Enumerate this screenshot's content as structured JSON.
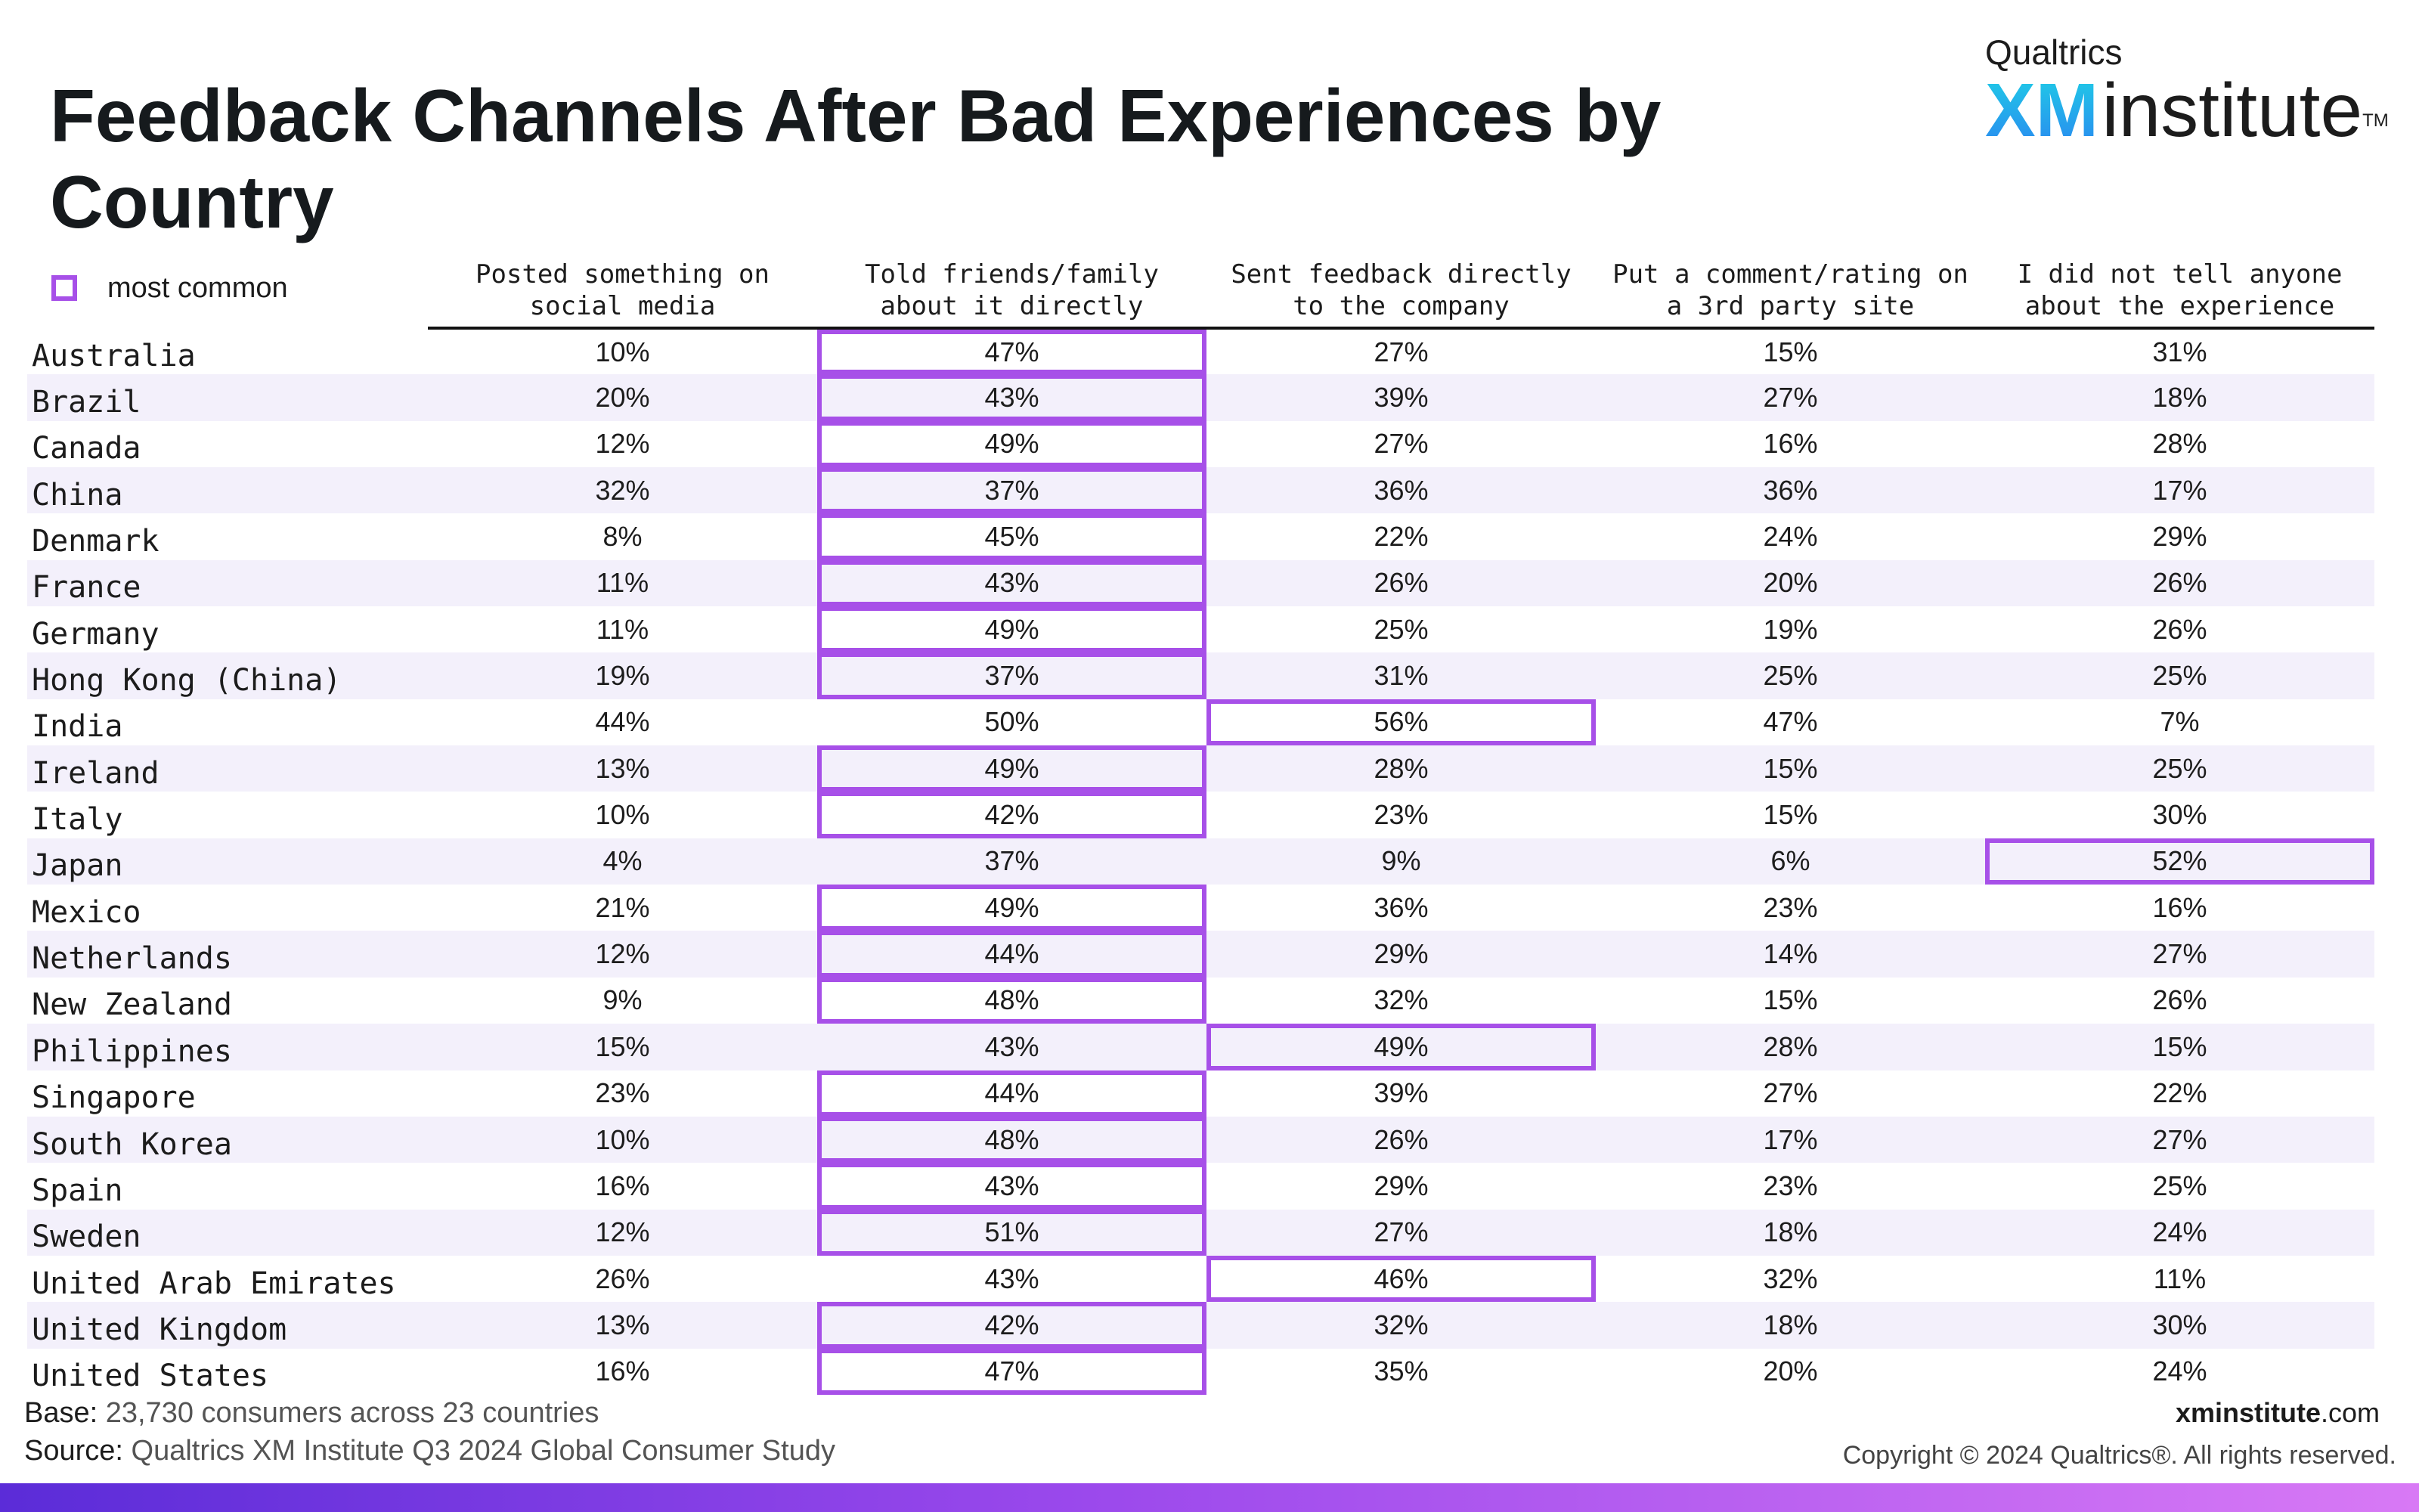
{
  "title": "Feedback Channels After Bad Experiences by Country",
  "logo": {
    "top": "Qualtrics",
    "xm": "XM",
    "institute": "institute",
    "tm": "TM"
  },
  "legend": {
    "label": "most common"
  },
  "colors": {
    "highlight": "#a750e8",
    "stripe": "#f3f0fb"
  },
  "chart_data": {
    "type": "table",
    "title": "Feedback Channels After Bad Experiences by Country",
    "columns": [
      "Posted something on\nsocial media",
      "Told friends/family\nabout it directly",
      "Sent feedback directly\nto the company",
      "Put a comment/rating on\na 3rd party site",
      "I did not tell anyone\nabout the experience"
    ],
    "rows": [
      {
        "country": "Australia",
        "values": [
          "10%",
          "47%",
          "27%",
          "15%",
          "31%"
        ],
        "most_common": 1
      },
      {
        "country": "Brazil",
        "values": [
          "20%",
          "43%",
          "39%",
          "27%",
          "18%"
        ],
        "most_common": 1
      },
      {
        "country": "Canada",
        "values": [
          "12%",
          "49%",
          "27%",
          "16%",
          "28%"
        ],
        "most_common": 1
      },
      {
        "country": "China",
        "values": [
          "32%",
          "37%",
          "36%",
          "36%",
          "17%"
        ],
        "most_common": 1
      },
      {
        "country": "Denmark",
        "values": [
          "8%",
          "45%",
          "22%",
          "24%",
          "29%"
        ],
        "most_common": 1
      },
      {
        "country": "France",
        "values": [
          "11%",
          "43%",
          "26%",
          "20%",
          "26%"
        ],
        "most_common": 1
      },
      {
        "country": "Germany",
        "values": [
          "11%",
          "49%",
          "25%",
          "19%",
          "26%"
        ],
        "most_common": 1
      },
      {
        "country": "Hong Kong (China)",
        "values": [
          "19%",
          "37%",
          "31%",
          "25%",
          "25%"
        ],
        "most_common": 1
      },
      {
        "country": "India",
        "values": [
          "44%",
          "50%",
          "56%",
          "47%",
          "7%"
        ],
        "most_common": 2
      },
      {
        "country": "Ireland",
        "values": [
          "13%",
          "49%",
          "28%",
          "15%",
          "25%"
        ],
        "most_common": 1
      },
      {
        "country": "Italy",
        "values": [
          "10%",
          "42%",
          "23%",
          "15%",
          "30%"
        ],
        "most_common": 1
      },
      {
        "country": "Japan",
        "values": [
          "4%",
          "37%",
          "9%",
          "6%",
          "52%"
        ],
        "most_common": 4
      },
      {
        "country": "Mexico",
        "values": [
          "21%",
          "49%",
          "36%",
          "23%",
          "16%"
        ],
        "most_common": 1
      },
      {
        "country": "Netherlands",
        "values": [
          "12%",
          "44%",
          "29%",
          "14%",
          "27%"
        ],
        "most_common": 1
      },
      {
        "country": "New Zealand",
        "values": [
          "9%",
          "48%",
          "32%",
          "15%",
          "26%"
        ],
        "most_common": 1
      },
      {
        "country": "Philippines",
        "values": [
          "15%",
          "43%",
          "49%",
          "28%",
          "15%"
        ],
        "most_common": 2
      },
      {
        "country": "Singapore",
        "values": [
          "23%",
          "44%",
          "39%",
          "27%",
          "22%"
        ],
        "most_common": 1
      },
      {
        "country": "South Korea",
        "values": [
          "10%",
          "48%",
          "26%",
          "17%",
          "27%"
        ],
        "most_common": 1
      },
      {
        "country": "Spain",
        "values": [
          "16%",
          "43%",
          "29%",
          "23%",
          "25%"
        ],
        "most_common": 1
      },
      {
        "country": "Sweden",
        "values": [
          "12%",
          "51%",
          "27%",
          "18%",
          "24%"
        ],
        "most_common": 1
      },
      {
        "country": "United Arab Emirates",
        "values": [
          "26%",
          "43%",
          "46%",
          "32%",
          "11%"
        ],
        "most_common": 2
      },
      {
        "country": "United Kingdom",
        "values": [
          "13%",
          "42%",
          "32%",
          "18%",
          "30%"
        ],
        "most_common": 1
      },
      {
        "country": "United States",
        "values": [
          "16%",
          "47%",
          "35%",
          "20%",
          "24%"
        ],
        "most_common": 1
      }
    ]
  },
  "footer": {
    "base_label": "Base:",
    "base_text": "23,730 consumers across 23 countries",
    "source_label": "Source:",
    "source_text": "Qualtrics XM Institute Q3 2024 Global Consumer Study",
    "site_bold": "xminstitute",
    "site_rest": ".com",
    "copyright": "Copyright © 2024 Qualtrics®. All rights reserved."
  }
}
